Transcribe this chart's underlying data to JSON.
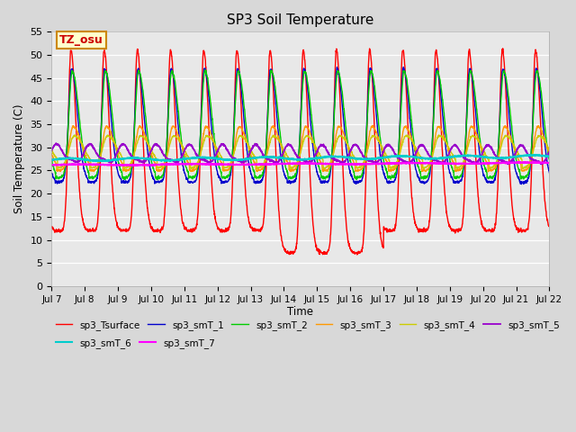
{
  "title": "SP3 Soil Temperature",
  "ylabel": "Soil Temperature (C)",
  "xlabel": "Time",
  "annotation": "TZ_osu",
  "ylim": [
    0,
    55
  ],
  "yticks": [
    0,
    5,
    10,
    15,
    20,
    25,
    30,
    35,
    40,
    45,
    50,
    55
  ],
  "xtick_labels": [
    "Jul 7",
    "Jul 8",
    "Jul 9",
    "Jul 10",
    "Jul 11",
    "Jul 12",
    "Jul 13",
    "Jul 14",
    "Jul 15",
    "Jul 16",
    "Jul 17",
    "Jul 18",
    "Jul 19",
    "Jul 20",
    "Jul 21",
    "Jul 22"
  ],
  "n_days": 15,
  "pts_per_day": 144,
  "series_colors": {
    "sp3_Tsurface": "#ff0000",
    "sp3_smT_1": "#0000cc",
    "sp3_smT_2": "#00cc00",
    "sp3_smT_3": "#ff9900",
    "sp3_smT_4": "#cccc00",
    "sp3_smT_5": "#9900cc",
    "sp3_smT_6": "#00cccc",
    "sp3_smT_7": "#ff00ff"
  },
  "background_color": "#d8d8d8",
  "plot_bg_color": "#e8e8e8",
  "legend_ncol_row1": 6,
  "legend_ncol_row2": 2
}
